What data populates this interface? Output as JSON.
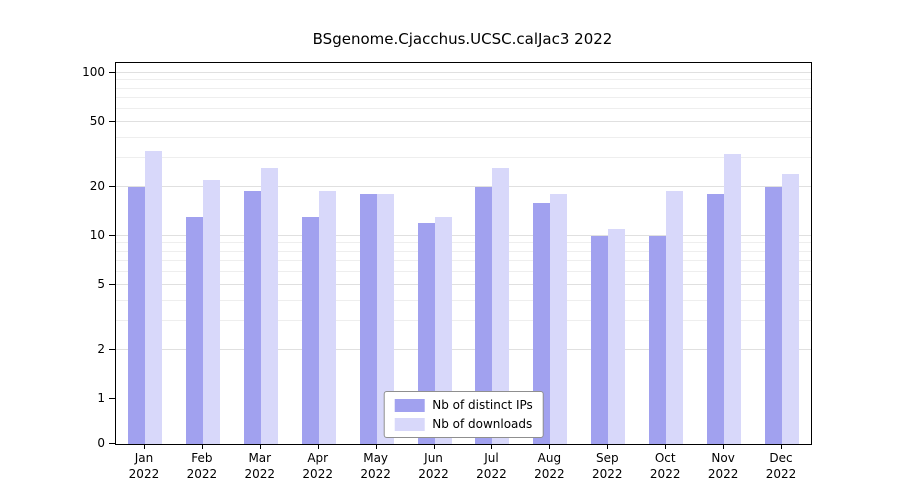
{
  "chart_data": {
    "type": "bar",
    "title": "BSgenome.Cjacchus.UCSC.calJac3 2022",
    "categories": [
      "Jan",
      "Feb",
      "Mar",
      "Apr",
      "May",
      "Jun",
      "Jul",
      "Aug",
      "Sep",
      "Oct",
      "Nov",
      "Dec"
    ],
    "year_label": "2022",
    "series": [
      {
        "name": "Nb of distinct IPs",
        "color": "#a1a1ef",
        "values": [
          20,
          13,
          19,
          13,
          18,
          12,
          20,
          16,
          10,
          10,
          18,
          20
        ]
      },
      {
        "name": "Nb of downloads",
        "color": "#d8d8fa",
        "values": [
          33,
          22,
          26,
          19,
          18,
          13,
          26,
          18,
          11,
          19,
          32,
          24
        ]
      }
    ],
    "y_ticks": [
      0,
      1,
      2,
      5,
      10,
      20,
      50,
      100
    ],
    "y_minor_grid": [
      2,
      3,
      4,
      5,
      6,
      7,
      8,
      9,
      10,
      20,
      30,
      40,
      50,
      60,
      70,
      80,
      90,
      100
    ],
    "scale": "log-with-zero",
    "ylim": [
      0,
      100
    ],
    "grid": true,
    "legend_position": "bottom-center"
  }
}
